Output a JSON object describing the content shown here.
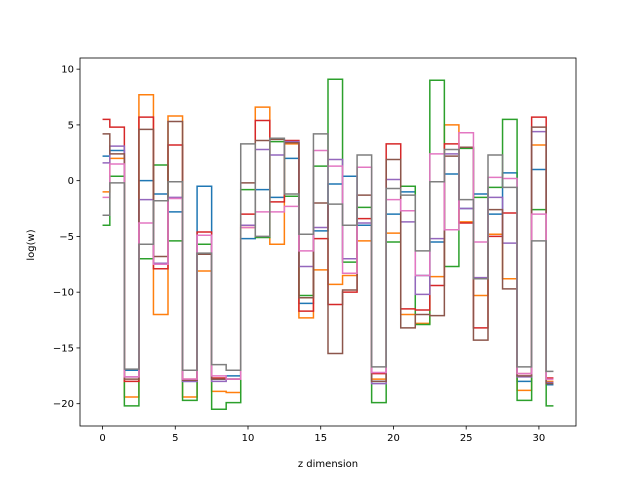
{
  "chart_data": {
    "type": "line",
    "drawstyle": "steps-mid",
    "title": "",
    "xlabel": "z dimension",
    "ylabel": "log(w)",
    "xlim": [
      -1.55,
      32.55
    ],
    "ylim": [
      -22,
      11
    ],
    "xticks": [
      0,
      5,
      10,
      15,
      20,
      25,
      30
    ],
    "yticks": [
      -20,
      -15,
      -10,
      -5,
      0,
      5,
      10
    ],
    "grid": false,
    "legend": "none",
    "x": [
      0,
      1,
      2,
      3,
      4,
      5,
      6,
      7,
      8,
      9,
      10,
      11,
      12,
      13,
      14,
      15,
      16,
      17,
      18,
      19,
      20,
      21,
      22,
      23,
      24,
      25,
      26,
      27,
      28,
      29,
      30,
      31
    ],
    "series": [
      {
        "color": "#1f77b4",
        "values": [
          2.2,
          2.7,
          -17.0,
          0.0,
          -1.2,
          -2.8,
          -18.0,
          -0.5,
          -17.8,
          -17.5,
          -5.2,
          -0.8,
          -1.5,
          2.0,
          -11.0,
          -4.5,
          -0.3,
          0.4,
          -4.0,
          -18.0,
          -3.0,
          -1.0,
          -8.5,
          -5.5,
          0.6,
          -2.5,
          -1.2,
          -3.0,
          0.7,
          -18.0,
          1.0,
          -18.3
        ]
      },
      {
        "color": "#ff7f0e",
        "values": [
          -1.0,
          2.0,
          -19.4,
          7.7,
          -12.0,
          5.8,
          -19.4,
          -8.1,
          -18.9,
          -19.0,
          -4.2,
          6.6,
          -5.7,
          3.3,
          -12.3,
          -8.0,
          -9.3,
          -8.5,
          -5.4,
          -17.8,
          -4.7,
          -12.0,
          -12.8,
          -8.6,
          5.0,
          -3.7,
          -10.3,
          -4.8,
          -8.8,
          -18.8,
          3.2,
          -18.0
        ]
      },
      {
        "color": "#2ca02c",
        "values": [
          -4.0,
          0.4,
          -20.2,
          -7.0,
          1.4,
          -5.4,
          -19.7,
          -5.7,
          -20.5,
          -19.9,
          -0.8,
          -5.1,
          3.5,
          -1.4,
          -10.3,
          1.3,
          9.1,
          -7.3,
          -2.4,
          -19.9,
          -5.5,
          -0.5,
          -12.9,
          9.0,
          -7.7,
          2.9,
          -1.5,
          -0.6,
          5.5,
          -19.7,
          -2.6,
          -20.2
        ]
      },
      {
        "color": "#d62728",
        "values": [
          5.5,
          4.8,
          -18.0,
          5.7,
          -7.9,
          3.2,
          -17.8,
          -4.6,
          -17.7,
          -17.8,
          -3.0,
          5.4,
          -1.9,
          3.6,
          -11.7,
          -5.2,
          -11.1,
          -10.0,
          -3.4,
          -17.3,
          3.3,
          -11.5,
          -11.6,
          -9.4,
          3.3,
          -3.8,
          -13.2,
          -5.0,
          -2.9,
          -17.3,
          5.7,
          -17.7
        ]
      },
      {
        "color": "#9467bd",
        "values": [
          1.6,
          3.1,
          -17.6,
          -1.7,
          -7.4,
          -1.5,
          -18.0,
          -4.9,
          -18.0,
          -17.8,
          -4.0,
          2.8,
          2.3,
          3.5,
          -7.7,
          -4.2,
          1.9,
          -7.0,
          -3.8,
          -18.2,
          0.1,
          -3.7,
          -10.2,
          -5.2,
          2.4,
          -2.5,
          -8.7,
          -1.5,
          -5.6,
          -17.6,
          4.4,
          -18.1
        ]
      },
      {
        "color": "#8c564b",
        "values": [
          4.2,
          2.4,
          -17.8,
          4.6,
          -6.8,
          5.3,
          -17.9,
          -6.6,
          -17.8,
          -17.8,
          -0.2,
          3.6,
          3.7,
          3.4,
          -10.5,
          -2.0,
          -15.5,
          -9.8,
          -1.3,
          -18.0,
          1.9,
          -13.2,
          -12.0,
          -12.1,
          2.2,
          3.0,
          -14.3,
          -2.6,
          -9.7,
          -17.5,
          4.8,
          -18.2
        ]
      },
      {
        "color": "#e377c2",
        "values": [
          -1.5,
          1.5,
          -17.6,
          -3.8,
          -7.5,
          -1.6,
          -17.8,
          -4.9,
          -17.5,
          -17.8,
          -4.2,
          -2.8,
          -2.8,
          -2.3,
          -6.3,
          2.7,
          1.3,
          -8.3,
          1.2,
          -17.2,
          -1.7,
          -2.7,
          -8.5,
          2.4,
          -4.4,
          4.3,
          -5.5,
          0.3,
          0.2,
          -17.3,
          -3.0,
          -17.8
        ]
      },
      {
        "color": "#7f7f7f",
        "values": [
          -3.1,
          -0.2,
          -16.9,
          -5.7,
          -1.8,
          -0.1,
          -17.0,
          -6.5,
          -16.5,
          -17.0,
          3.3,
          -5.0,
          3.8,
          -1.2,
          -4.8,
          4.2,
          -2.1,
          -4.0,
          2.3,
          -16.7,
          -0.7,
          -1.3,
          -6.3,
          -0.1,
          2.8,
          -1.7,
          -8.8,
          2.3,
          -0.6,
          -16.7,
          -5.4,
          -17.1
        ]
      }
    ]
  }
}
